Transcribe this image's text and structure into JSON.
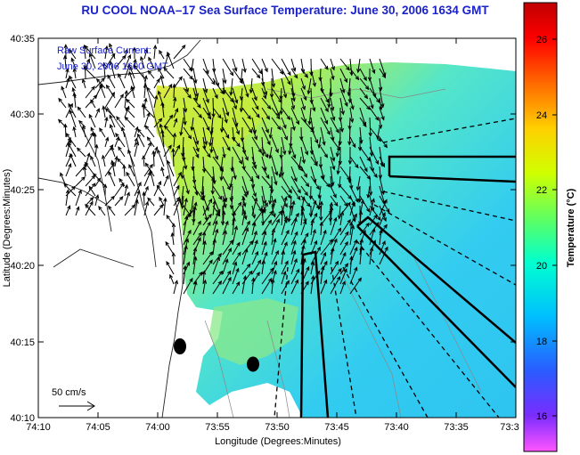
{
  "title": "RU COOL  NOAA–17  Sea Surface Temperature:  June 30, 2006 1634 GMT",
  "legend": {
    "line1": "Raw Surface Current:",
    "line2": "June 30, 2006 1600 GMT"
  },
  "scale_label": "50 cm/s",
  "x_axis": {
    "label": "Longitude (Degrees:Minutes)",
    "ticks": [
      "74:10",
      "74:05",
      "74:00",
      "73:55",
      "73:50",
      "73:45",
      "73:40",
      "73:35",
      "73:3"
    ]
  },
  "y_axis": {
    "label": "Latitude (Degrees:Minutes)",
    "ticks": [
      "40:35",
      "40:30",
      "40:25",
      "40:20",
      "40:15",
      "40:10"
    ]
  },
  "colorbar": {
    "label": "Temperature (°C)",
    "ticks": [
      "26",
      "24",
      "22",
      "20",
      "18",
      "16"
    ],
    "colors": [
      "#ff55ff",
      "#7a2cff",
      "#2a5cff",
      "#00bfff",
      "#00ffd0",
      "#60ff60",
      "#d0ff00",
      "#ffd000",
      "#ff6a00",
      "#ff0000",
      "#c00000"
    ]
  },
  "map": {
    "land_color": "#ffffff",
    "sst_colors": {
      "cool": "#33ccf0",
      "mid": "#55e6c8",
      "warm": "#b9ee48",
      "hot": "#e6e640"
    }
  }
}
